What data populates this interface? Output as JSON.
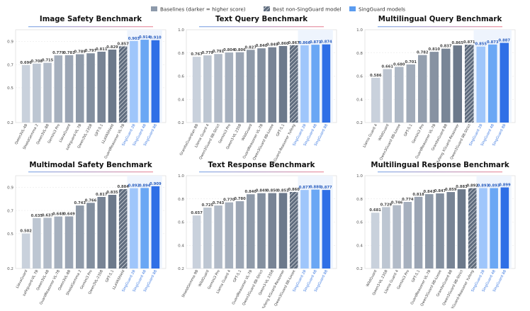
{
  "legend": {
    "items": [
      {
        "label": "Baselines (darker = higher score)",
        "color": "#8d9aab"
      },
      {
        "label": "Best non-SingGuard model",
        "color": "#5f6c7e",
        "hatch": true
      },
      {
        "label": "SingGuard models",
        "color": "#5b9cf0"
      }
    ]
  },
  "chart_data": [
    {
      "type": "bar",
      "title": "Image Safety Benchmark",
      "ylim": [
        0.2,
        1.0
      ],
      "yticks": [
        0.2,
        0.5,
        0.7,
        0.9
      ],
      "categories": [
        "Qwen3VL-4B",
        "ShieldGemma 2",
        "Qwen3VL-8B",
        "Gemini3 Pro",
        "LlavaGuard",
        "safeguard-VL 7B",
        "Qwen3VL-235B",
        "GPT-5.1",
        "LLaVAShield",
        "GuardReasoner VL-7B",
        "SingGuard 2B",
        "SingGuard 4B",
        "SingGuard 8B"
      ],
      "values": [
        0.696,
        0.708,
        0.715,
        0.779,
        0.781,
        0.789,
        0.797,
        0.811,
        0.829,
        0.857,
        0.903,
        0.914,
        0.91
      ],
      "kinds": [
        "base",
        "base",
        "base",
        "base",
        "base",
        "base",
        "base",
        "base",
        "base",
        "best",
        "sing",
        "sing",
        "sing"
      ]
    },
    {
      "type": "bar",
      "title": "Text Query Benchmark",
      "ylim": [
        0.2,
        1.0
      ],
      "yticks": [
        0.2,
        0.4,
        0.6,
        0.8,
        1.0
      ],
      "categories": [
        "GraniteGuardian 8B",
        "Llama Guard 4",
        "Qwen3Guard 8B-Strict",
        "Gemini3 Pro",
        "Qwen3-VL 235B",
        "WildGuard",
        "GuardReasoner VL-7B",
        "Qwen3Guard 8B-Loose",
        "GPT-5.1",
        "XGuard-Reasoner Yufeng",
        "SingGuard 2B",
        "SingGuard 4B",
        "SingGuard 8B"
      ],
      "values": [
        0.767,
        0.779,
        0.791,
        0.804,
        0.806,
        0.827,
        0.84,
        0.849,
        0.86,
        0.867,
        0.866,
        0.871,
        0.874
      ],
      "kinds": [
        "base",
        "base",
        "base",
        "base",
        "base",
        "base",
        "base",
        "base",
        "base",
        "best",
        "sing",
        "sing",
        "sing"
      ]
    },
    {
      "type": "bar",
      "title": "Multilingual Query Benchmark",
      "ylim": [
        0.2,
        1.0
      ],
      "yticks": [
        0.2,
        0.4,
        0.6,
        0.8,
        1.0
      ],
      "categories": [
        "Llama Guard 4",
        "WildGuard",
        "Qwen3Guard 8B-Loose",
        "GPT-5.1",
        "Gemini3 Pro",
        "GuardReasoner VL-7B",
        "GraniteGuard 8B",
        "Yufeng XGuard-Reasoner",
        "Qwen3Guard 8B-Strict",
        "SingGuard 2B",
        "SingGuard 4B",
        "SingGuard 8B"
      ],
      "values": [
        0.586,
        0.661,
        0.68,
        0.701,
        0.782,
        0.81,
        0.837,
        0.865,
        0.871,
        0.855,
        0.873,
        0.887
      ],
      "kinds": [
        "base",
        "base",
        "base",
        "base",
        "base",
        "base",
        "base",
        "base",
        "best",
        "sing",
        "sing",
        "sing"
      ]
    },
    {
      "type": "bar",
      "title": "Multimodal Safety Benchmark",
      "ylim": [
        0.2,
        1.0
      ],
      "yticks": [
        0.2,
        0.5,
        0.7,
        0.9
      ],
      "categories": [
        "LlavaGuard",
        "safeguard-VL 7B",
        "Qwen3VL-4B",
        "GuardReasoner VL-7B",
        "Qwen3VL-8B",
        "ShieldGemma 2",
        "Gemini3 Pro",
        "Qwen3VL-235B",
        "GPT-5.1",
        "LLaVAShield",
        "SingGuard 2B",
        "SingGuard 4B",
        "SingGuard 8B"
      ],
      "values": [
        0.502,
        0.635,
        0.637,
        0.648,
        0.649,
        0.743,
        0.766,
        0.817,
        0.835,
        0.884,
        0.892,
        0.894,
        0.909
      ],
      "kinds": [
        "base",
        "base",
        "base",
        "base",
        "base",
        "base",
        "base",
        "base",
        "base",
        "best",
        "sing",
        "sing",
        "sing"
      ]
    },
    {
      "type": "bar",
      "title": "Text Response Benchmark",
      "ylim": [
        0.2,
        1.0
      ],
      "yticks": [
        0.2,
        0.4,
        0.6,
        0.8,
        1.0
      ],
      "categories": [
        "ShieldGemma 9B",
        "WildGuard",
        "Gemini3 Pro",
        "Llama Guard 4",
        "GPT-5.1",
        "GuardReasoner VL-7B",
        "Qwen3Guard 8B-Strict",
        "Qwen3-VL 235B",
        "Yufeng XGuard-Reasoner",
        "Qwen3Guard 8B-Loose",
        "SingGuard 2B",
        "SingGuard 4B",
        "SingGuard 8B"
      ],
      "values": [
        0.657,
        0.725,
        0.743,
        0.77,
        0.78,
        0.84,
        0.849,
        0.85,
        0.851,
        0.86,
        0.877,
        0.88,
        0.877
      ],
      "kinds": [
        "base",
        "base",
        "base",
        "base",
        "base",
        "base",
        "base",
        "base",
        "base",
        "best",
        "sing",
        "sing",
        "sing"
      ]
    },
    {
      "type": "bar",
      "title": "Multilingual Response Benchmark",
      "ylim": [
        0.2,
        1.0
      ],
      "yticks": [
        0.2,
        0.4,
        0.6,
        0.8,
        1.0
      ],
      "categories": [
        "WildGuard",
        "Qwen3-VL 235B",
        "Llama Guard 4",
        "Gemini3 Pro",
        "GPT-5.1",
        "GuardReasoner VL-7B",
        "Qwen3Guard 8B-Loose",
        "GraniteGuard 8B",
        "Qwen3Guard 8B-Strict",
        "XGuard-Reasoner Yufeng",
        "SingGuard 2B",
        "SingGuard 4B",
        "SingGuard 8B"
      ],
      "values": [
        0.681,
        0.729,
        0.746,
        0.774,
        0.818,
        0.841,
        0.847,
        0.859,
        0.883,
        0.892,
        0.893,
        0.893,
        0.899
      ],
      "kinds": [
        "base",
        "base",
        "base",
        "base",
        "base",
        "base",
        "base",
        "base",
        "base",
        "best",
        "sing",
        "sing",
        "sing"
      ]
    }
  ]
}
